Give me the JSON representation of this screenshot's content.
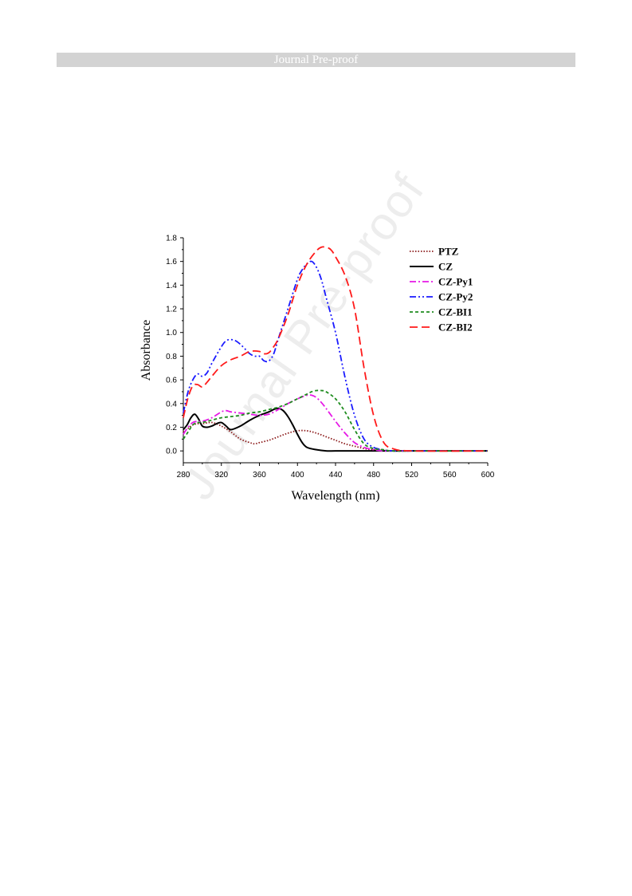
{
  "header": {
    "title": "Journal Pre-proof"
  },
  "watermark": {
    "text": "Journal Pre-proof"
  },
  "chart_data": {
    "type": "line",
    "xlabel": "Wavelength (nm)",
    "ylabel": "Absorbance",
    "xlim": [
      280,
      600
    ],
    "ylim": [
      -0.1,
      1.8
    ],
    "xticks": [
      280,
      320,
      360,
      400,
      440,
      480,
      520,
      560,
      600
    ],
    "yticks": [
      0.0,
      0.2,
      0.4,
      0.6,
      0.8,
      1.0,
      1.2,
      1.4,
      1.6,
      1.8
    ],
    "legend_position": "top-right",
    "grid": false,
    "series": [
      {
        "name": "PTZ",
        "color": "#8b1a1a",
        "dash": "dotted",
        "x": [
          280,
          285,
          290,
          295,
          300,
          310,
          320,
          330,
          340,
          350,
          355,
          360,
          370,
          380,
          390,
          400,
          410,
          420,
          430,
          440,
          450,
          460,
          470,
          480,
          490,
          500,
          520,
          560,
          600
        ],
        "y": [
          0.16,
          0.19,
          0.22,
          0.23,
          0.23,
          0.24,
          0.21,
          0.16,
          0.1,
          0.07,
          0.06,
          0.07,
          0.09,
          0.12,
          0.15,
          0.17,
          0.17,
          0.15,
          0.12,
          0.09,
          0.06,
          0.04,
          0.02,
          0.01,
          0.005,
          0.0,
          0.0,
          0.0,
          0.0
        ]
      },
      {
        "name": "CZ",
        "color": "#000000",
        "dash": "solid",
        "x": [
          280,
          284,
          288,
          292,
          296,
          300,
          305,
          310,
          315,
          320,
          325,
          330,
          340,
          350,
          360,
          370,
          375,
          380,
          385,
          390,
          395,
          400,
          405,
          410,
          420,
          430,
          440,
          460,
          480,
          520,
          600
        ],
        "y": [
          0.18,
          0.22,
          0.28,
          0.31,
          0.27,
          0.21,
          0.2,
          0.21,
          0.23,
          0.24,
          0.21,
          0.18,
          0.21,
          0.26,
          0.3,
          0.33,
          0.35,
          0.36,
          0.34,
          0.29,
          0.22,
          0.14,
          0.07,
          0.03,
          0.01,
          0.0,
          0.0,
          0.0,
          0.0,
          0.0,
          0.0
        ]
      },
      {
        "name": "CZ-Py1",
        "color": "#e619e6",
        "dash": "dashdot",
        "x": [
          280,
          285,
          290,
          295,
          300,
          310,
          320,
          325,
          330,
          340,
          350,
          360,
          370,
          380,
          390,
          400,
          410,
          415,
          420,
          425,
          430,
          440,
          450,
          460,
          470,
          480,
          490,
          500,
          520,
          600
        ],
        "y": [
          0.14,
          0.2,
          0.24,
          0.25,
          0.25,
          0.28,
          0.33,
          0.34,
          0.33,
          0.32,
          0.31,
          0.3,
          0.31,
          0.35,
          0.4,
          0.44,
          0.47,
          0.47,
          0.45,
          0.41,
          0.36,
          0.25,
          0.15,
          0.07,
          0.03,
          0.01,
          0.0,
          0.0,
          0.0,
          0.0
        ]
      },
      {
        "name": "CZ-Py2",
        "color": "#1a1aff",
        "dash": "dashdotdot",
        "x": [
          280,
          285,
          290,
          295,
          300,
          305,
          310,
          320,
          325,
          330,
          335,
          340,
          345,
          350,
          355,
          360,
          365,
          370,
          375,
          380,
          390,
          400,
          405,
          410,
          415,
          420,
          425,
          430,
          440,
          450,
          460,
          470,
          480,
          490,
          500,
          520,
          600
        ],
        "y": [
          0.32,
          0.5,
          0.6,
          0.65,
          0.63,
          0.66,
          0.74,
          0.88,
          0.93,
          0.94,
          0.93,
          0.9,
          0.86,
          0.82,
          0.8,
          0.8,
          0.76,
          0.76,
          0.82,
          0.95,
          1.2,
          1.45,
          1.53,
          1.58,
          1.6,
          1.55,
          1.45,
          1.3,
          1.0,
          0.62,
          0.3,
          0.1,
          0.03,
          0.01,
          0.0,
          0.0,
          0.0
        ]
      },
      {
        "name": "CZ-BI1",
        "color": "#1e8c1e",
        "dash": "dashed",
        "x": [
          280,
          285,
          290,
          295,
          300,
          310,
          320,
          330,
          340,
          350,
          360,
          370,
          380,
          390,
          400,
          410,
          415,
          420,
          425,
          430,
          440,
          450,
          460,
          470,
          480,
          490,
          500,
          520,
          600
        ],
        "y": [
          0.1,
          0.16,
          0.22,
          0.24,
          0.24,
          0.26,
          0.28,
          0.29,
          0.3,
          0.32,
          0.33,
          0.35,
          0.37,
          0.4,
          0.44,
          0.48,
          0.5,
          0.51,
          0.51,
          0.5,
          0.44,
          0.33,
          0.18,
          0.06,
          0.02,
          0.01,
          0.0,
          0.0,
          0.0
        ]
      },
      {
        "name": "CZ-BI2",
        "color": "#ff1a1a",
        "dash": "longdash",
        "x": [
          280,
          285,
          290,
          295,
          300,
          305,
          310,
          320,
          330,
          340,
          350,
          360,
          365,
          370,
          375,
          380,
          390,
          400,
          410,
          420,
          425,
          430,
          435,
          440,
          450,
          460,
          470,
          480,
          490,
          500,
          520,
          600
        ],
        "y": [
          0.28,
          0.45,
          0.55,
          0.56,
          0.54,
          0.58,
          0.63,
          0.72,
          0.77,
          0.8,
          0.84,
          0.84,
          0.82,
          0.83,
          0.88,
          0.95,
          1.15,
          1.4,
          1.58,
          1.69,
          1.72,
          1.72,
          1.7,
          1.64,
          1.48,
          1.2,
          0.7,
          0.3,
          0.08,
          0.02,
          0.0,
          0.0
        ]
      }
    ]
  }
}
